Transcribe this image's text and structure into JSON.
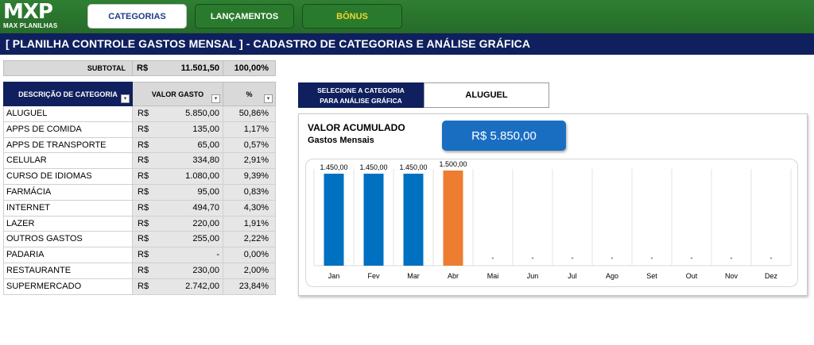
{
  "app": {
    "logo_text": "MXP",
    "logo_subtitle": "MAX PLANILHAS",
    "tabs": [
      {
        "label": "CATEGORIAS"
      },
      {
        "label": "LANÇAMENTOS"
      },
      {
        "label": "BÔNUS"
      }
    ],
    "page_title": "[ PLANILHA CONTROLE GASTOS MENSAL ] - CADASTRO DE CATEGORIAS E ANÁLISE GRÁFICA"
  },
  "subtotal": {
    "label": "SUBTOTAL",
    "currency": "R$",
    "value": "11.501,50",
    "percent": "100,00%"
  },
  "table": {
    "headers": {
      "description": "DESCRIÇÃO DE CATEGORIA",
      "value": "VALOR GASTO",
      "percent": "%"
    },
    "rows": [
      {
        "category": "ALUGUEL",
        "currency": "R$",
        "value": "5.850,00",
        "percent": "50,86%"
      },
      {
        "category": "APPS DE COMIDA",
        "currency": "R$",
        "value": "135,00",
        "percent": "1,17%"
      },
      {
        "category": "APPS DE TRANSPORTE",
        "currency": "R$",
        "value": "65,00",
        "percent": "0,57%"
      },
      {
        "category": "CELULAR",
        "currency": "R$",
        "value": "334,80",
        "percent": "2,91%"
      },
      {
        "category": "CURSO DE IDIOMAS",
        "currency": "R$",
        "value": "1.080,00",
        "percent": "9,39%"
      },
      {
        "category": "FARMÁCIA",
        "currency": "R$",
        "value": "95,00",
        "percent": "0,83%"
      },
      {
        "category": "INTERNET",
        "currency": "R$",
        "value": "494,70",
        "percent": "4,30%"
      },
      {
        "category": "LAZER",
        "currency": "R$",
        "value": "220,00",
        "percent": "1,91%"
      },
      {
        "category": "OUTROS GASTOS",
        "currency": "R$",
        "value": "255,00",
        "percent": "2,22%"
      },
      {
        "category": "PADARIA",
        "currency": "R$",
        "value": "-",
        "percent": "0,00%"
      },
      {
        "category": "RESTAURANTE",
        "currency": "R$",
        "value": "230,00",
        "percent": "2,00%"
      },
      {
        "category": "SUPERMERCADO",
        "currency": "R$",
        "value": "2.742,00",
        "percent": "23,84%"
      }
    ]
  },
  "selector": {
    "label_line1": "SELECIONE A CATEGORIA",
    "label_line2": "PARA ANÁLISE GRÁFICA",
    "selected": "ALUGUEL"
  },
  "chart_card": {
    "title": "VALOR ACUMULADO",
    "subtitle": "Gastos Mensais",
    "accumulated": "R$ 5.850,00"
  },
  "colors": {
    "green": "#2e7d32",
    "navy": "#10205e",
    "bar_blue": "#0070c0",
    "bar_orange": "#ed7d31",
    "bonus_text": "#f2d32f"
  },
  "chart_data": {
    "type": "bar",
    "categories": [
      "Jan",
      "Fev",
      "Mar",
      "Abr",
      "Mai",
      "Jun",
      "Jul",
      "Ago",
      "Set",
      "Out",
      "Nov",
      "Dez"
    ],
    "values": [
      1450,
      1450,
      1450,
      1500,
      0,
      0,
      0,
      0,
      0,
      0,
      0,
      0
    ],
    "data_labels": [
      "1.450,00",
      "1.450,00",
      "1.450,00",
      "1.500,00",
      "-",
      "-",
      "-",
      "-",
      "-",
      "-",
      "-",
      "-"
    ],
    "bar_colors": [
      "#0070c0",
      "#0070c0",
      "#0070c0",
      "#ed7d31",
      "#0070c0",
      "#0070c0",
      "#0070c0",
      "#0070c0",
      "#0070c0",
      "#0070c0",
      "#0070c0",
      "#0070c0"
    ],
    "ylim": [
      0,
      1500
    ],
    "grid": "vertical",
    "legend": "none",
    "title": "",
    "xlabel": "",
    "ylabel": ""
  }
}
